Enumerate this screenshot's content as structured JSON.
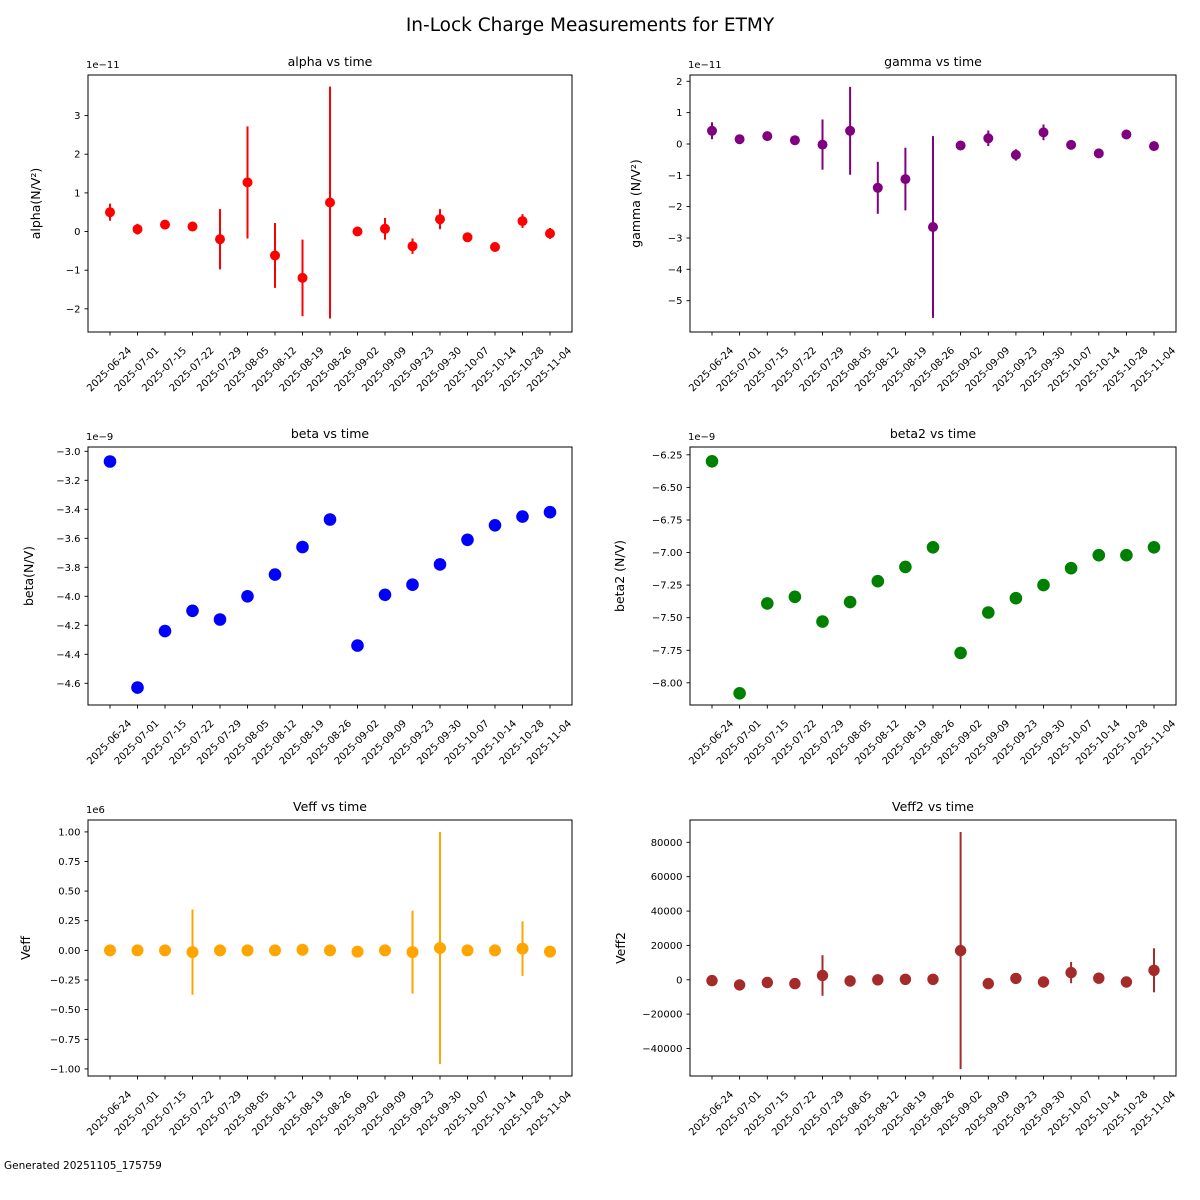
{
  "figure": {
    "title": "In-Lock Charge Measurements for ETMY",
    "footer": "Generated 20251105_175759",
    "background": "#ffffff"
  },
  "chart_data": {
    "type": "scatter",
    "grid": false,
    "legend": false,
    "x_categories": [
      "2025-06-24",
      "2025-07-01",
      "2025-07-15",
      "2025-07-22",
      "2025-07-29",
      "2025-08-05",
      "2025-08-12",
      "2025-08-19",
      "2025-08-26",
      "2025-09-02",
      "2025-09-09",
      "2025-09-23",
      "2025-09-30",
      "2025-10-07",
      "2025-10-14",
      "2025-10-28",
      "2025-11-04"
    ],
    "subplots": [
      {
        "name": "alpha",
        "type": "scatter-errorbar",
        "title": "alpha vs time",
        "ylabel": "alpha(N/V²)",
        "offset_label": "1e−11",
        "unit_scale": "1e-11",
        "color": "#ff0000",
        "values": [
          0.5,
          0.06,
          0.18,
          0.13,
          -0.2,
          1.27,
          -0.62,
          -1.2,
          0.75,
          0.0,
          0.07,
          -0.38,
          0.32,
          -0.15,
          -0.4,
          0.27,
          -0.05
        ],
        "yerr": [
          0.22,
          0.14,
          0.06,
          0.05,
          0.78,
          1.45,
          0.84,
          0.99,
          3.0,
          0.04,
          0.28,
          0.2,
          0.26,
          0.12,
          0.12,
          0.18,
          0.14
        ],
        "yticks": [
          3,
          2,
          1,
          0,
          -1,
          -2
        ],
        "ytick_decimals": 0,
        "ylim": [
          -2.6,
          4.05
        ]
      },
      {
        "name": "gamma",
        "type": "scatter-errorbar",
        "title": "gamma vs time",
        "ylabel": "gamma (N/V²)",
        "offset_label": "1e−11",
        "unit_scale": "1e-11",
        "color": "#800080",
        "values": [
          0.42,
          0.15,
          0.25,
          0.12,
          -0.02,
          0.42,
          -1.4,
          -1.12,
          -2.65,
          -0.05,
          0.18,
          -0.35,
          0.37,
          -0.03,
          -0.3,
          0.3,
          -0.07
        ],
        "yerr": [
          0.27,
          0.13,
          0.1,
          0.09,
          0.8,
          1.4,
          0.83,
          1.0,
          2.9,
          0.08,
          0.25,
          0.18,
          0.25,
          0.1,
          0.12,
          0.15,
          0.14
        ],
        "yticks": [
          2,
          1,
          0,
          -1,
          -2,
          -3,
          -4,
          -5
        ],
        "ytick_decimals": 0,
        "ylim": [
          -6.0,
          2.2
        ]
      },
      {
        "name": "beta",
        "type": "scatter",
        "title": "beta vs time",
        "ylabel": "beta(N/V)",
        "offset_label": "1e−9",
        "unit_scale": "1e-9",
        "color": "#0000ff",
        "values": [
          -3.07,
          -4.63,
          -4.24,
          -4.1,
          -4.16,
          -4.0,
          -3.85,
          -3.66,
          -3.47,
          -4.34,
          -3.99,
          -3.92,
          -3.78,
          -3.61,
          -3.51,
          -3.45,
          -3.42
        ],
        "yerr": null,
        "yticks": [
          -3.0,
          -3.2,
          -3.4,
          -3.6,
          -3.8,
          -4.0,
          -4.2,
          -4.4,
          -4.6
        ],
        "ytick_decimals": 1,
        "ylim": [
          -4.75,
          -2.97
        ]
      },
      {
        "name": "beta2",
        "type": "scatter",
        "title": "beta2 vs time",
        "ylabel": "beta2 (N/V)",
        "offset_label": "1e−9",
        "unit_scale": "1e-9",
        "color": "#008000",
        "values": [
          -6.3,
          -8.08,
          -7.39,
          -7.34,
          -7.53,
          -7.38,
          -7.22,
          -7.11,
          -6.96,
          -7.77,
          -7.46,
          -7.35,
          -7.25,
          -7.12,
          -7.02,
          -7.02,
          -6.96
        ],
        "yerr": null,
        "yticks": [
          -6.25,
          -6.5,
          -6.75,
          -7.0,
          -7.25,
          -7.5,
          -7.75,
          -8.0
        ],
        "ytick_decimals": 2,
        "ylim": [
          -8.17,
          -6.19
        ]
      },
      {
        "name": "Veff",
        "type": "scatter-errorbar",
        "title": "Veff vs time",
        "ylabel": "Veff",
        "offset_label": "1e6",
        "unit_scale": "1e6",
        "color": "#ffa500",
        "values": [
          0.0,
          0.0,
          0.0,
          -0.015,
          0.0,
          0.0,
          0.0,
          0.005,
          0.0,
          -0.01,
          0.0,
          -0.015,
          0.02,
          0.0,
          0.0,
          0.015,
          -0.01
        ],
        "yerr": [
          0.01,
          0.01,
          0.01,
          0.36,
          0.01,
          0.01,
          0.01,
          0.05,
          0.01,
          0.01,
          0.01,
          0.35,
          0.98,
          0.01,
          0.01,
          0.23,
          0.01
        ],
        "yticks": [
          1.0,
          0.75,
          0.5,
          0.25,
          0.0,
          -0.25,
          -0.5,
          -0.75,
          -1.0
        ],
        "ytick_decimals": 2,
        "ylim": [
          -1.06,
          1.1
        ]
      },
      {
        "name": "Veff2",
        "type": "scatter-errorbar",
        "title": "Veff2 vs time",
        "ylabel": "Veff2",
        "offset_label": "",
        "unit_scale": "1",
        "color": "#a52a2a",
        "values": [
          -500,
          -3000,
          -1600,
          -2200,
          2500,
          -700,
          0,
          300,
          300,
          17000,
          -2200,
          800,
          -1300,
          4200,
          900,
          -1300,
          5500
        ],
        "yerr": [
          900,
          1600,
          900,
          1000,
          11800,
          800,
          700,
          1000,
          900,
          69000,
          2600,
          1000,
          1000,
          6200,
          1000,
          1100,
          12800
        ],
        "yticks": [
          80000,
          60000,
          40000,
          20000,
          0,
          -20000,
          -40000
        ],
        "ytick_decimals": 0,
        "ylim": [
          -56000,
          93000
        ]
      }
    ]
  }
}
